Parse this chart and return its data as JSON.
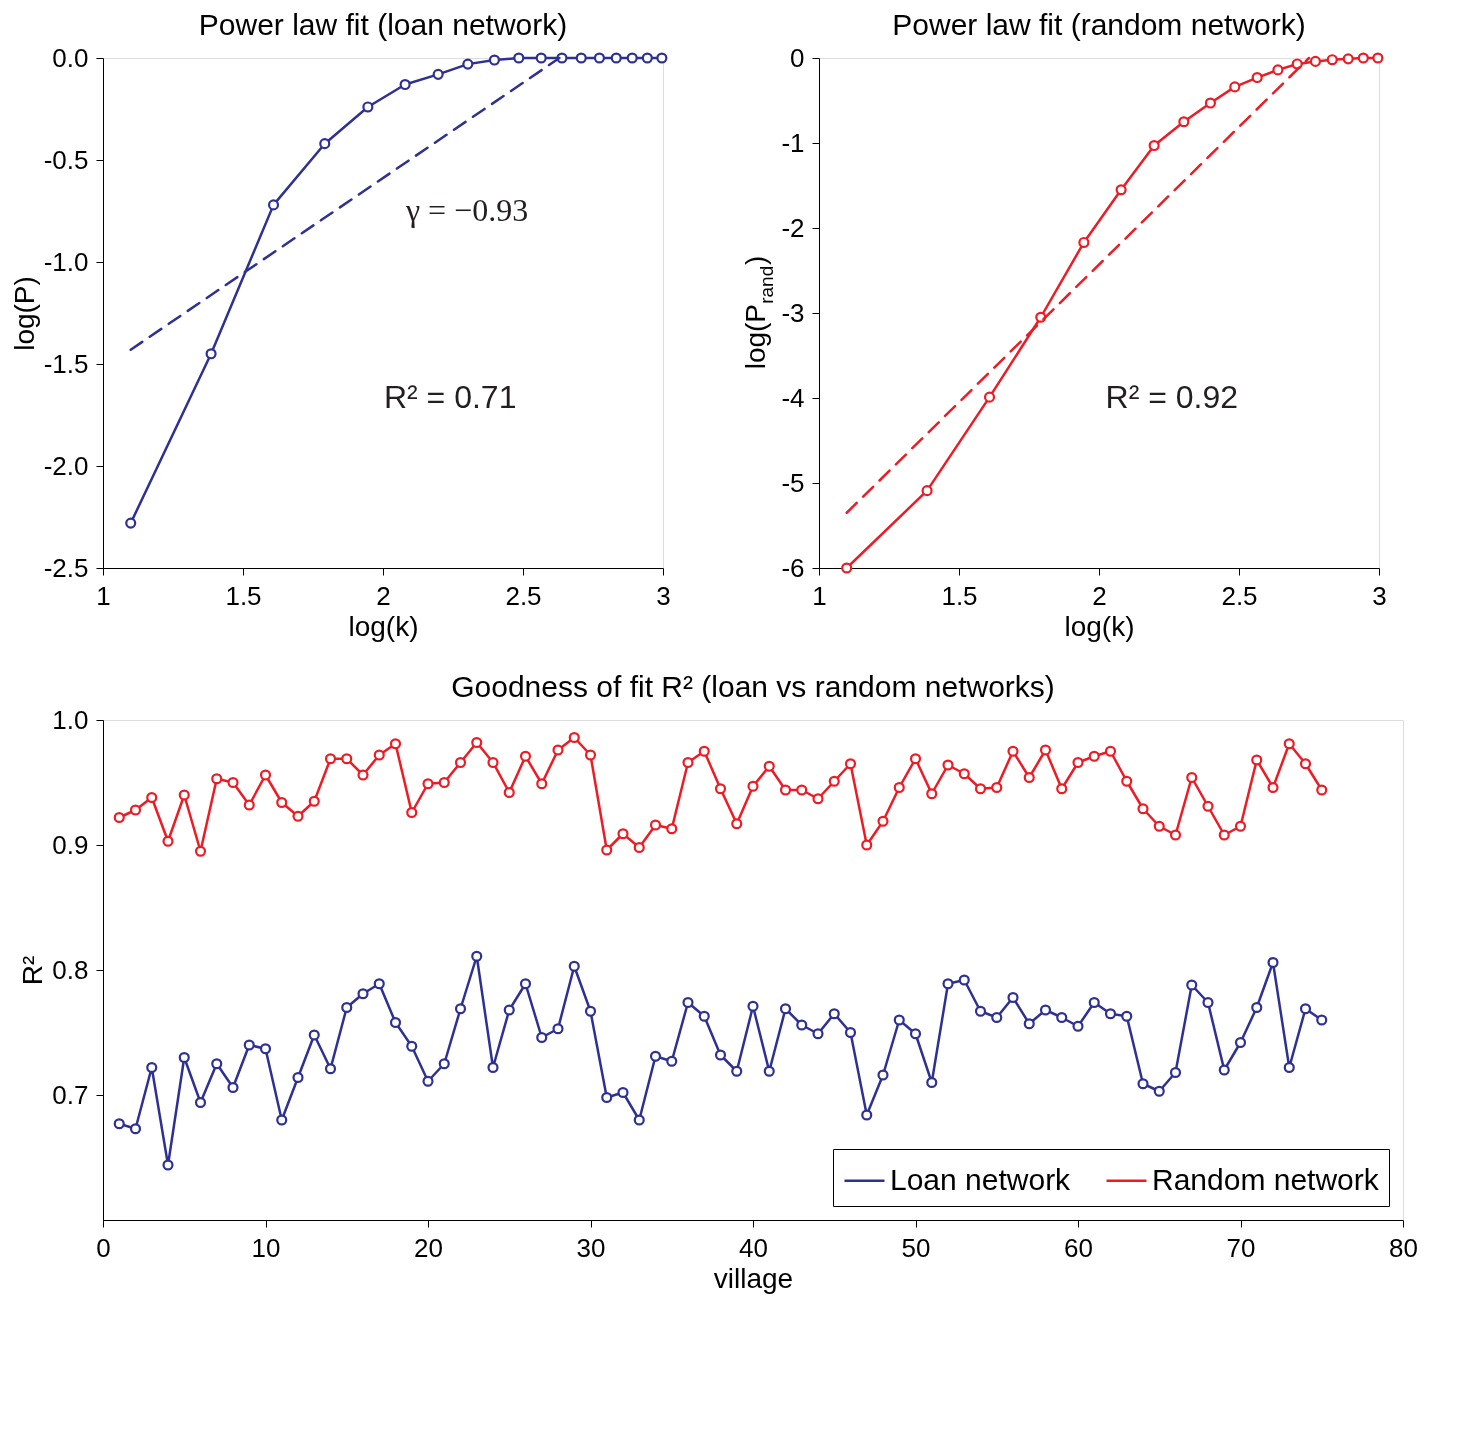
{
  "chart_data": [
    {
      "type": "line",
      "title": "Power law fit (loan network)",
      "xlabel": "log(k)",
      "ylabel": "log(P)",
      "xlim": [
        1,
        3
      ],
      "xticks": [
        1,
        1.5,
        2,
        2.5,
        3
      ],
      "ylim": [
        -2.5,
        0
      ],
      "yticks": [
        -2.5,
        {
          "value": -2,
          "label": "-2.0"
        },
        -1.5,
        {
          "value": -1,
          "label": "-1.0"
        },
        -0.5,
        {
          "value": 0,
          "label": "0.0"
        }
      ],
      "marker": "circle",
      "series": [
        {
          "color": "#2e3192",
          "x": [
            1.099,
            1.386,
            1.609,
            1.792,
            1.946,
            2.079,
            2.197,
            2.303,
            2.398,
            2.485,
            2.565,
            2.639,
            2.708,
            2.773,
            2.833,
            2.89,
            2.944,
            2.996
          ],
          "values": [
            -2.28,
            -1.45,
            -0.72,
            -0.42,
            -0.24,
            -0.13,
            -0.08,
            -0.03,
            -0.01,
            0,
            0,
            0,
            0,
            0,
            0,
            0,
            0,
            0
          ]
        },
        {
          "type": "line",
          "color": "#2e3192",
          "marker": "none",
          "line_style": "dashed",
          "x": [
            1.099,
            2.63
          ],
          "values": [
            -1.43,
            0
          ]
        }
      ],
      "annotations": [
        "γ = −0.93",
        "R² = 0.71"
      ]
    },
    {
      "type": "line",
      "title": "Power law fit (random network)",
      "xlabel": "log(k)",
      "ylabel": "log(P$_{rand}$)",
      "xlim": [
        1,
        3
      ],
      "xticks": [
        1,
        1.5,
        2,
        2.5,
        3
      ],
      "ylim": [
        -6,
        0
      ],
      "yticks": [
        -6,
        -5,
        -4,
        -3,
        -2,
        -1,
        0
      ],
      "marker": "circle",
      "series": [
        {
          "color": "#ed1c24",
          "x": [
            1.099,
            1.386,
            1.609,
            1.792,
            1.946,
            2.079,
            2.197,
            2.303,
            2.398,
            2.485,
            2.565,
            2.639,
            2.708,
            2.773,
            2.833,
            2.89,
            2.944,
            2.996
          ],
          "values": [
            -6.0,
            -5.09,
            -3.99,
            -3.05,
            -2.17,
            -1.55,
            -1.03,
            -0.75,
            -0.53,
            -0.34,
            -0.23,
            -0.14,
            -0.07,
            -0.04,
            -0.02,
            -0.01,
            0,
            0
          ]
        },
        {
          "type": "line",
          "color": "#ed1c24",
          "marker": "none",
          "line_style": "dashed",
          "x": [
            1.099,
            2.75
          ],
          "values": [
            -5.35,
            0
          ]
        }
      ],
      "annotations": [
        "R² = 0.92"
      ]
    },
    {
      "type": "line",
      "title": "Goodness of fit R² (loan vs random networks)",
      "xlabel": "village",
      "ylabel": "R²",
      "xlim": [
        0,
        80
      ],
      "xticks": [
        0,
        10,
        20,
        30,
        40,
        50,
        60,
        70,
        80
      ],
      "ylim": [
        0.6,
        1.0
      ],
      "yticks": [
        0.7,
        0.8,
        0.9,
        {
          "value": 1,
          "label": "1.0"
        }
      ],
      "marker": "circle",
      "legend": "bottom right",
      "x": [
        1,
        2,
        3,
        4,
        5,
        6,
        7,
        8,
        9,
        10,
        11,
        12,
        13,
        14,
        15,
        16,
        17,
        18,
        19,
        20,
        21,
        22,
        23,
        24,
        25,
        26,
        27,
        28,
        29,
        30,
        31,
        32,
        33,
        34,
        35,
        36,
        37,
        38,
        39,
        40,
        41,
        42,
        43,
        44,
        45,
        46,
        47,
        48,
        49,
        50,
        51,
        52,
        53,
        54,
        55,
        56,
        57,
        58,
        59,
        60,
        61,
        62,
        63,
        64,
        65,
        66,
        67,
        68,
        69,
        70,
        71,
        72,
        73,
        74,
        75
      ],
      "series": [
        {
          "name": "Loan network",
          "color": "#2e3192",
          "values": [
            0.677,
            0.673,
            0.722,
            0.644,
            0.73,
            0.694,
            0.725,
            0.706,
            0.74,
            0.737,
            0.68,
            0.714,
            0.748,
            0.721,
            0.77,
            0.781,
            0.789,
            0.758,
            0.739,
            0.711,
            0.725,
            0.769,
            0.811,
            0.722,
            0.768,
            0.789,
            0.746,
            0.753,
            0.803,
            0.767,
            0.698,
            0.702,
            0.68,
            0.731,
            0.727,
            0.774,
            0.763,
            0.732,
            0.719,
            0.771,
            0.719,
            0.769,
            0.756,
            0.749,
            0.765,
            0.75,
            0.684,
            0.716,
            0.76,
            0.749,
            0.71,
            0.789,
            0.792,
            0.767,
            0.762,
            0.778,
            0.757,
            0.768,
            0.762,
            0.755,
            0.774,
            0.765,
            0.763,
            0.709,
            0.703,
            0.718,
            0.788,
            0.774,
            0.72,
            0.742,
            0.77,
            0.806,
            0.722,
            0.769,
            0.76
          ]
        },
        {
          "name": "Random network",
          "color": "#ed1c24",
          "values": [
            0.922,
            0.928,
            0.938,
            0.903,
            0.94,
            0.895,
            0.953,
            0.95,
            0.932,
            0.956,
            0.934,
            0.923,
            0.935,
            0.969,
            0.969,
            0.956,
            0.972,
            0.981,
            0.926,
            0.949,
            0.95,
            0.966,
            0.982,
            0.966,
            0.942,
            0.971,
            0.949,
            0.976,
            0.986,
            0.972,
            0.896,
            0.909,
            0.898,
            0.916,
            0.913,
            0.966,
            0.975,
            0.945,
            0.917,
            0.947,
            0.963,
            0.944,
            0.944,
            0.937,
            0.951,
            0.965,
            0.9,
            0.919,
            0.946,
            0.969,
            0.941,
            0.964,
            0.957,
            0.945,
            0.946,
            0.975,
            0.954,
            0.976,
            0.945,
            0.966,
            0.971,
            0.975,
            0.951,
            0.929,
            0.915,
            0.908,
            0.954,
            0.931,
            0.908,
            0.915,
            0.968,
            0.946,
            0.981,
            0.965,
            0.944
          ]
        }
      ]
    }
  ]
}
